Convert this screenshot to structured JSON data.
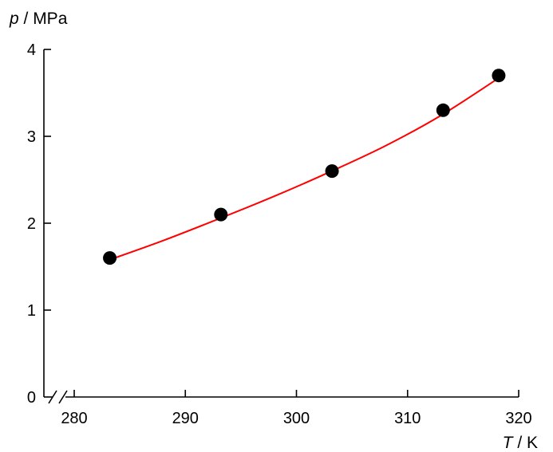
{
  "chart_data": {
    "type": "scatter",
    "xlabel": {
      "var": "T",
      "unit": " / K"
    },
    "ylabel": {
      "var": "p",
      "unit": " / MPa"
    },
    "xlim": [
      277.5,
      320
    ],
    "ylim": [
      0,
      4
    ],
    "x_ticks": [
      280,
      290,
      300,
      310,
      320
    ],
    "y_ticks": [
      0,
      1,
      2,
      3,
      4
    ],
    "x_axis_break": true,
    "grid": false,
    "legend": "none",
    "points": [
      {
        "x": 283.2,
        "y": 1.6
      },
      {
        "x": 293.2,
        "y": 2.1
      },
      {
        "x": 303.2,
        "y": 2.6
      },
      {
        "x": 313.2,
        "y": 3.3
      },
      {
        "x": 318.2,
        "y": 3.7
      }
    ],
    "fit_curve": {
      "type": "line",
      "x": [
        283.2,
        288,
        293,
        298,
        303,
        308,
        313,
        318.2
      ],
      "y": [
        1.58,
        1.8,
        2.05,
        2.31,
        2.59,
        2.89,
        3.24,
        3.67
      ]
    },
    "colors": {
      "points": "#000000",
      "fit_curve": "#ff0000",
      "axes": "#000000"
    }
  }
}
